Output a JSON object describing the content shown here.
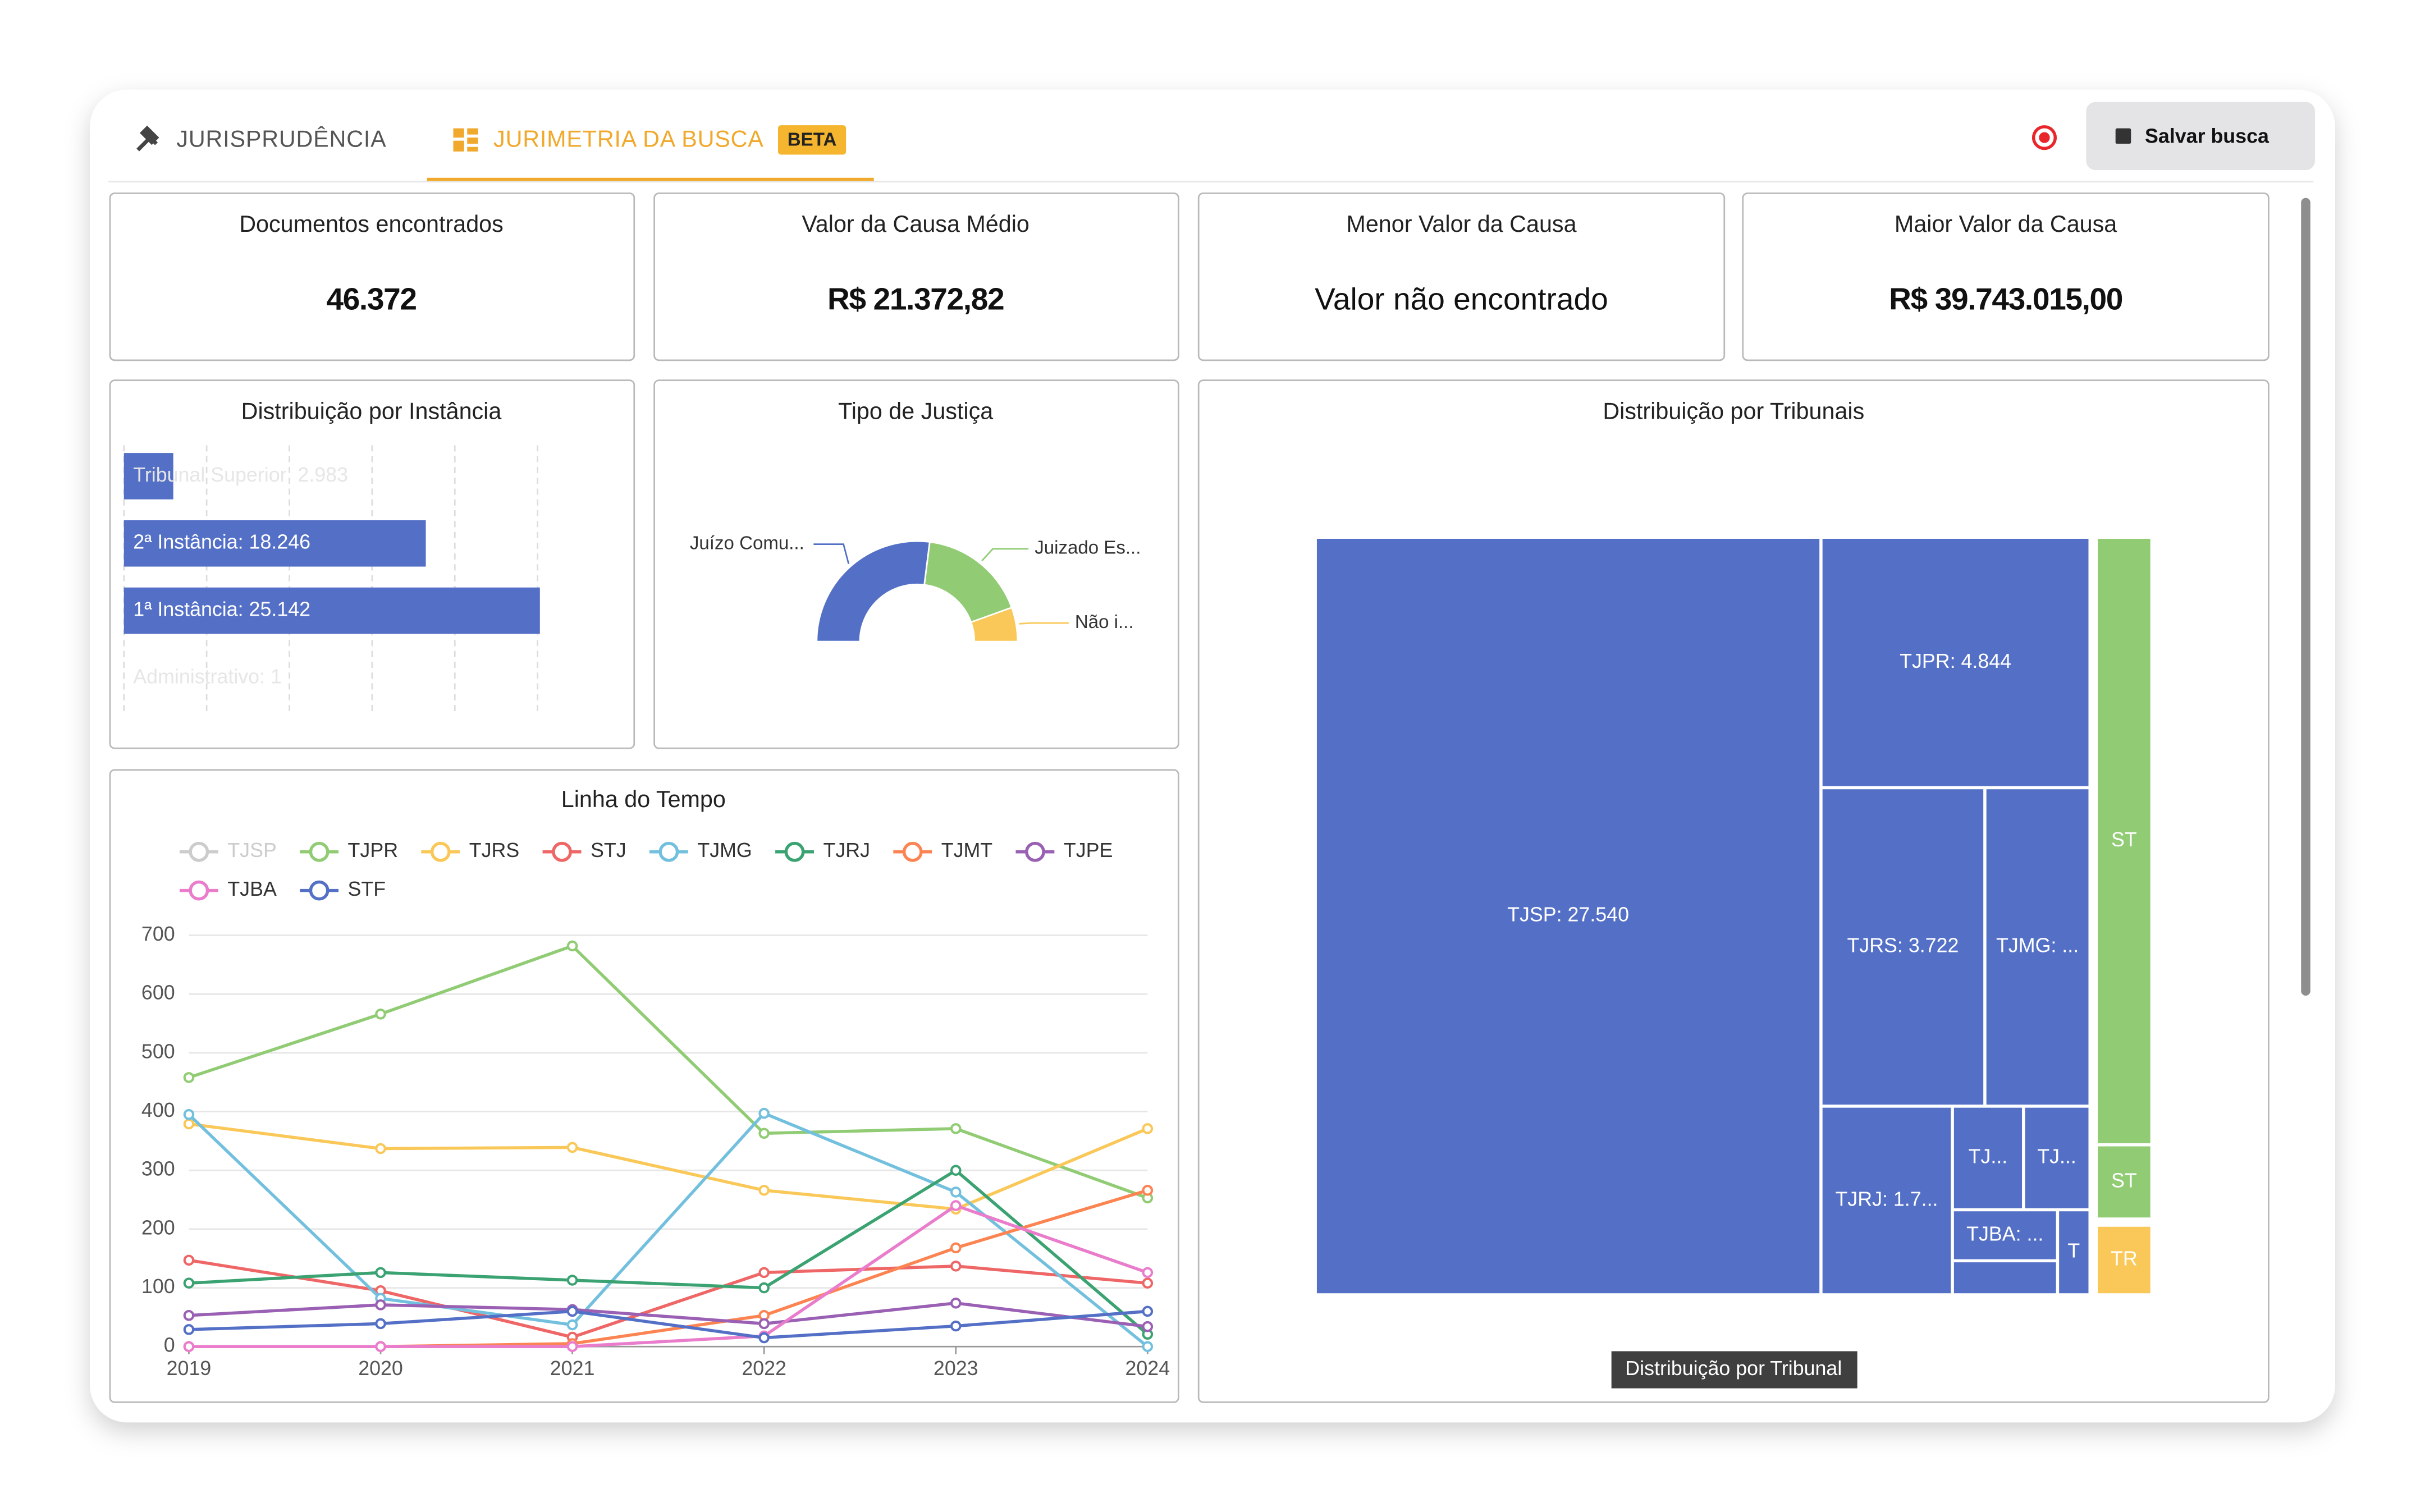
{
  "tabs": [
    "JURISPRUDÊNCIA",
    "JURIMETRIA DA BUSCA"
  ],
  "badge": "BETA",
  "save_button": "Salvar busca",
  "cards": [
    {
      "title": "Documentos encontrados",
      "value": "46.372"
    },
    {
      "title": "Valor da Causa Médio",
      "value": "R$ 21.372,82"
    },
    {
      "title": "Menor Valor da Causa",
      "value": "Valor não encontrado"
    },
    {
      "title": "Maior Valor da Causa",
      "value": "R$ 39.743.015,00"
    }
  ],
  "instancia": {
    "type": "bar",
    "title": "Distribuição por Instância",
    "categories": [
      "Tribunal Superior",
      "2ª Instância",
      "1ª Instância",
      "Administrativo"
    ],
    "values": [
      2983,
      18246,
      25142,
      1
    ],
    "value_labels": [
      "Tribunal Superior: 2.983",
      "2ª Instância: 18.246",
      "1ª Instância: 25.142",
      "Administrativo: 1"
    ],
    "color": "#5470c6",
    "xlim": [
      0,
      25000
    ],
    "xticks": [
      0,
      5000,
      10000,
      15000,
      20000,
      25000
    ],
    "grid": true
  },
  "tipo_justica": {
    "type": "half-donut",
    "title": "Tipo de Justiça",
    "categories": [
      "Juízo Comu...",
      "Juizado Es...",
      "Não i..."
    ],
    "values": [
      54,
      35,
      11
    ],
    "colors": [
      "#5470c6",
      "#91cc75",
      "#fac858"
    ]
  },
  "linha_do_tempo": {
    "type": "line",
    "title": "Linha do Tempo",
    "x": [
      2019,
      2020,
      2021,
      2022,
      2023,
      2024
    ],
    "xlim": [
      2019,
      2024
    ],
    "xticks": [
      2019,
      2020,
      2021,
      2022,
      2023,
      2024
    ],
    "ylim": [
      0,
      700
    ],
    "yticks": [
      0,
      100,
      200,
      300,
      400,
      500,
      600,
      700
    ],
    "grid": true,
    "series": [
      {
        "name": "TJSP",
        "color": "#c8c8c8",
        "hidden": true
      },
      {
        "name": "TJPR",
        "color": "#91cc75",
        "values": [
          458,
          566,
          682,
          363,
          371,
          253
        ]
      },
      {
        "name": "TJRS",
        "color": "#fac858",
        "values": [
          379,
          337,
          339,
          266,
          234,
          371
        ]
      },
      {
        "name": "STJ",
        "color": "#ee6666",
        "values": [
          147,
          95,
          16,
          126,
          137,
          108
        ]
      },
      {
        "name": "TJMG",
        "color": "#73c0de",
        "values": [
          395,
          82,
          37,
          397,
          263,
          0
        ]
      },
      {
        "name": "TJRJ",
        "color": "#3ba272",
        "values": [
          108,
          126,
          113,
          100,
          300,
          21
        ]
      },
      {
        "name": "TJMT",
        "color": "#fc8452",
        "values": [
          0,
          0,
          5,
          53,
          168,
          266
        ]
      },
      {
        "name": "TJPE",
        "color": "#9a60b4",
        "values": [
          53,
          71,
          63,
          39,
          74,
          34
        ]
      },
      {
        "name": "TJBA",
        "color": "#ea7ccc",
        "values": [
          0,
          0,
          0,
          18,
          240,
          126
        ]
      },
      {
        "name": "STF",
        "color": "#5470c6",
        "values": [
          29,
          39,
          60,
          15,
          35,
          60
        ]
      }
    ]
  },
  "tribunais": {
    "type": "treemap",
    "title": "Distribuição por Tribunais",
    "tooltip": "Distribuição por Tribunal",
    "categories": [
      "TJSP: 27.540",
      "TJPR: 4.844",
      "TJRS: 3.722",
      "TJMG: ...",
      "TJRJ: 1.7...",
      "TJ...",
      "TJ...",
      "TJBA: ...",
      null,
      "T",
      "ST",
      "ST",
      "TR"
    ],
    "values": [
      27540,
      4844,
      3722,
      2372,
      1755,
      513,
      479,
      370,
      243,
      187,
      2370,
      284,
      266
    ],
    "colors": [
      "#5470c6",
      "#5470c6",
      "#5470c6",
      "#5470c6",
      "#5470c6",
      "#5470c6",
      "#5470c6",
      "#5470c6",
      "#5470c6",
      "#5470c6",
      "#91cc75",
      "#91cc75",
      "#fac858"
    ]
  }
}
